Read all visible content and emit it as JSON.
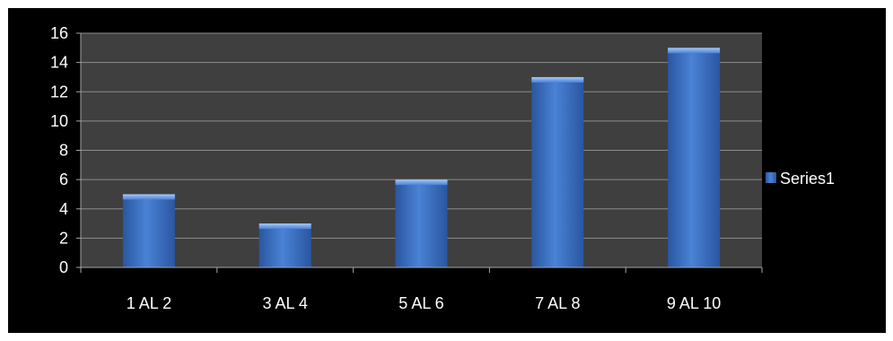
{
  "chart_data": {
    "type": "bar",
    "categories": [
      "1 AL 2",
      "3 AL 4",
      "5 AL 6",
      "7 AL 8",
      "9 AL 10"
    ],
    "series": [
      {
        "name": "Series1",
        "values": [
          5,
          3,
          6,
          13,
          15
        ],
        "color": "#3a6fc4"
      }
    ],
    "title": "",
    "xlabel": "",
    "ylabel": "",
    "ylim": [
      0,
      16
    ],
    "yticks": [
      "0",
      "2",
      "4",
      "6",
      "8",
      "10",
      "12",
      "14",
      "16"
    ],
    "grid": true,
    "legend_position": "right",
    "colors": {
      "background": "#000000",
      "plot_area": "#3f3f3f",
      "gridline": "#8c8c8c",
      "axis": "#a6a6a6",
      "text": "#ffffff"
    }
  }
}
